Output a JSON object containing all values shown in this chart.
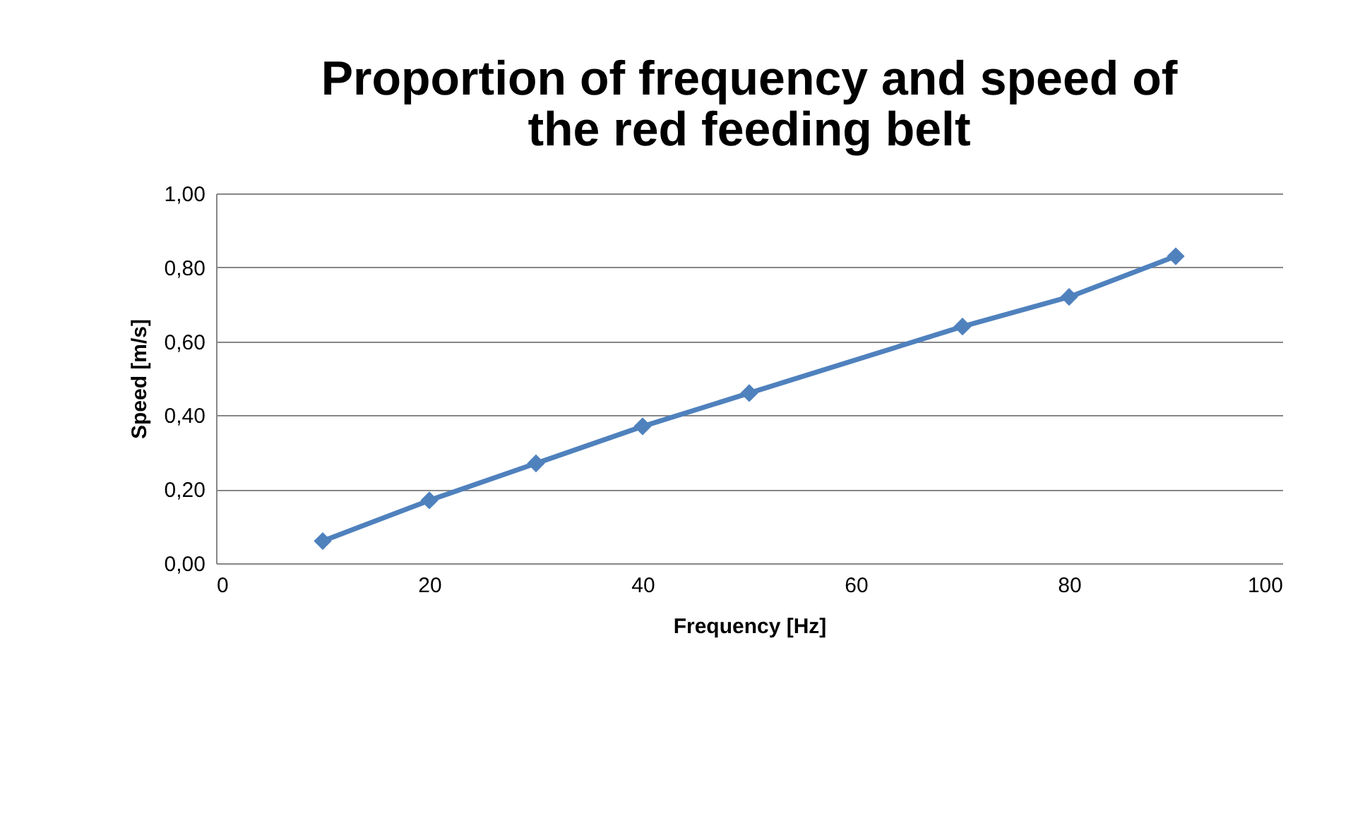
{
  "chart_data": {
    "type": "line",
    "title": [
      "Proportion of frequency and speed of",
      "the red feeding belt"
    ],
    "xlabel": "Frequency [Hz]",
    "ylabel": "Speed [m/s]",
    "x": [
      10,
      20,
      30,
      40,
      50,
      70,
      80,
      90
    ],
    "series": [
      {
        "color": "#4f81bd",
        "values": [
          0.06,
          0.17,
          0.27,
          0.37,
          0.46,
          0.64,
          0.72,
          0.83
        ]
      }
    ],
    "xlim": [
      0,
      100
    ],
    "xticks": [
      0,
      20,
      40,
      60,
      80,
      100
    ],
    "ylim": [
      0,
      1
    ],
    "yticks": [
      {
        "value": 0,
        "label": "0,00"
      },
      {
        "value": 0.2,
        "label": "0,20"
      },
      {
        "value": 0.4,
        "label": "0,40"
      },
      {
        "value": 0.6,
        "label": "0,60"
      },
      {
        "value": 0.8,
        "label": "0,80"
      },
      {
        "value": 1,
        "label": "1,00"
      }
    ],
    "grid": "y",
    "marker": "diamond",
    "line_style": "solid"
  }
}
